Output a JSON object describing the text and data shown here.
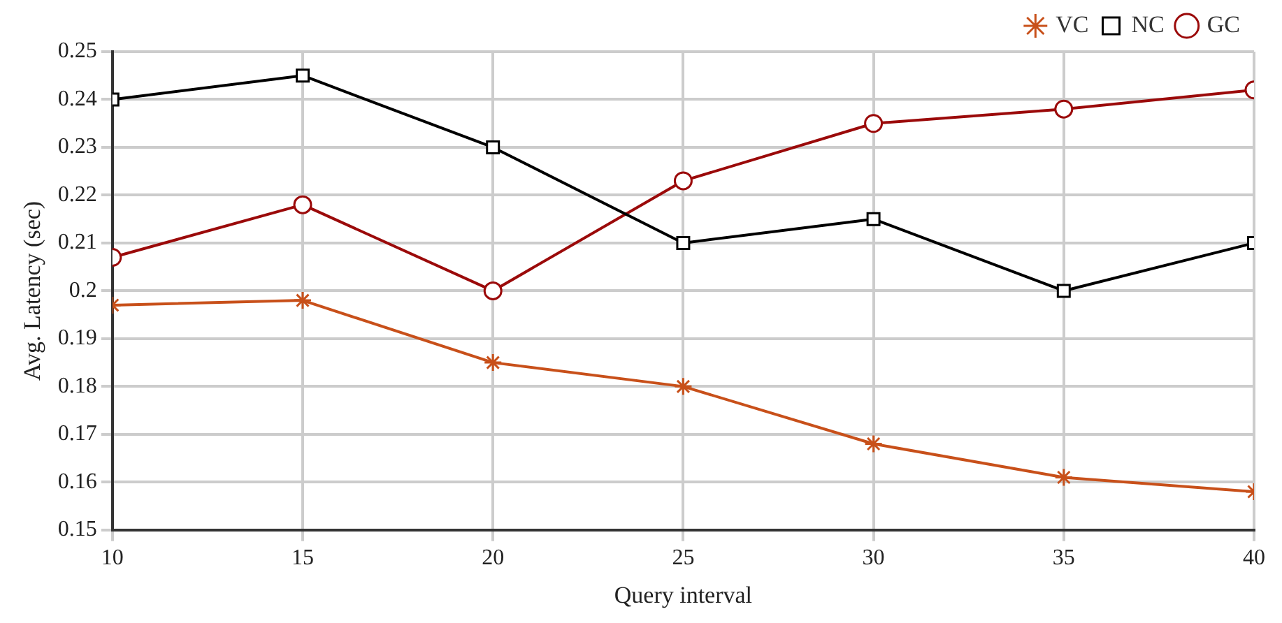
{
  "chart_data": {
    "type": "line",
    "xlabel": "Query interval",
    "ylabel": "Avg. Latency (sec)",
    "x": [
      10,
      15,
      20,
      25,
      30,
      35,
      40
    ],
    "series": [
      {
        "name": "VC",
        "color": "#c8501a",
        "marker": "cross",
        "values": [
          0.197,
          0.198,
          0.185,
          0.18,
          0.168,
          0.161,
          0.158
        ]
      },
      {
        "name": "NC",
        "color": "#000000",
        "marker": "square",
        "values": [
          0.24,
          0.245,
          0.23,
          0.21,
          0.215,
          0.2,
          0.21
        ]
      },
      {
        "name": "GC",
        "color": "#9b0a0a",
        "marker": "circle",
        "values": [
          0.207,
          0.218,
          0.2,
          0.223,
          0.235,
          0.238,
          0.242
        ]
      }
    ],
    "xlim": [
      10,
      40
    ],
    "xticks": [
      10,
      15,
      20,
      25,
      30,
      35,
      40
    ],
    "ylim": [
      0.15,
      0.25
    ],
    "yticks": [
      0.15,
      0.16,
      0.17,
      0.18,
      0.19,
      0.2,
      0.21,
      0.22,
      0.23,
      0.24,
      0.25
    ],
    "grid": true,
    "legend": "top right",
    "line_style": "solid"
  }
}
